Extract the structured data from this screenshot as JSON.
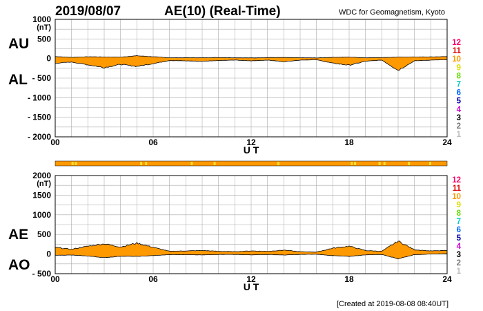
{
  "header": {
    "date": "2019/08/07",
    "title": "AE(10) (Real-Time)",
    "source": "WDC for Geomagnetism, Kyoto"
  },
  "footer": {
    "created": "[Created at 2019-08-08 08:40UT]"
  },
  "legend": {
    "levels": [
      "12",
      "11",
      "10",
      "9",
      "8",
      "7",
      "6",
      "5",
      "4",
      "3",
      "2",
      "1"
    ],
    "colors": [
      "#ff0066",
      "#dd0000",
      "#ff9900",
      "#dddd00",
      "#66dd00",
      "#00cccc",
      "#0066ff",
      "#0000aa",
      "#cc00cc",
      "#000000",
      "#777777",
      "#bbbbbb"
    ]
  },
  "colors": {
    "fill": "#ff9900",
    "fill_highlight": "#ffdd33",
    "outline": "#000000",
    "grid": "#aaaaaa",
    "text": "#000000"
  },
  "chart_data": [
    {
      "type": "area",
      "name": "AU/AL",
      "labels": {
        "upper": "AU",
        "lower": "AL"
      },
      "xlabel": "U T",
      "ylabel_unit": "(nT)",
      "xlim": [
        0,
        24
      ],
      "ylim": [
        -2000,
        1000
      ],
      "xticks": [
        "00",
        "06",
        "12",
        "18",
        "24"
      ],
      "yticks": [
        "1000",
        "500",
        "0",
        "- 500",
        "- 1000",
        "- 1500",
        "- 2000"
      ],
      "ytick_values": [
        1000,
        500,
        0,
        -500,
        -1000,
        -1500,
        -2000
      ],
      "series": [
        {
          "name": "AU",
          "x": [
            0,
            1,
            2,
            3,
            4,
            5,
            6,
            7,
            8,
            9,
            10,
            11,
            12,
            13,
            14,
            15,
            16,
            17,
            18,
            19,
            20,
            21,
            22,
            23,
            24
          ],
          "values": [
            50,
            30,
            45,
            40,
            35,
            70,
            45,
            20,
            20,
            20,
            25,
            20,
            15,
            25,
            25,
            20,
            15,
            30,
            35,
            20,
            25,
            35,
            40,
            40,
            50
          ]
        },
        {
          "name": "AL",
          "x": [
            0,
            1,
            2,
            3,
            4,
            5,
            6,
            7,
            8,
            9,
            10,
            11,
            12,
            13,
            14,
            15,
            16,
            17,
            18,
            19,
            20,
            21,
            22,
            23,
            24
          ],
          "values": [
            -120,
            -90,
            -160,
            -230,
            -150,
            -200,
            -130,
            -50,
            -60,
            -70,
            -50,
            -40,
            -60,
            -40,
            -80,
            -40,
            -30,
            -120,
            -170,
            -70,
            -40,
            -300,
            -60,
            -40,
            -30
          ]
        }
      ]
    },
    {
      "type": "area",
      "name": "AE/AO",
      "labels": {
        "upper": "AE",
        "lower": "AO"
      },
      "xlabel": "U T",
      "ylabel_unit": "(nT)",
      "xlim": [
        0,
        24
      ],
      "ylim": [
        -500,
        2000
      ],
      "xticks": [
        "00",
        "06",
        "12",
        "18",
        "24"
      ],
      "yticks": [
        "2000",
        "1500",
        "1000",
        "500",
        "0",
        "- 500"
      ],
      "ytick_values": [
        2000,
        1500,
        1000,
        500,
        0,
        -500
      ],
      "series": [
        {
          "name": "AE",
          "x": [
            0,
            1,
            2,
            3,
            4,
            5,
            6,
            7,
            8,
            9,
            10,
            11,
            12,
            13,
            14,
            15,
            16,
            17,
            18,
            19,
            20,
            21,
            22,
            23,
            24
          ],
          "values": [
            170,
            120,
            200,
            260,
            180,
            280,
            170,
            70,
            80,
            90,
            70,
            60,
            80,
            70,
            100,
            60,
            50,
            150,
            200,
            90,
            70,
            330,
            110,
            80,
            90
          ]
        },
        {
          "name": "AO",
          "x": [
            0,
            1,
            2,
            3,
            4,
            5,
            6,
            7,
            8,
            9,
            10,
            11,
            12,
            13,
            14,
            15,
            16,
            17,
            18,
            19,
            20,
            21,
            22,
            23,
            24
          ],
          "values": [
            -30,
            -25,
            -50,
            -90,
            -55,
            -60,
            -40,
            -15,
            -15,
            -20,
            -10,
            -10,
            -20,
            -10,
            -25,
            -10,
            -5,
            -40,
            -60,
            -20,
            -10,
            -120,
            -15,
            0,
            10
          ]
        }
      ]
    }
  ]
}
